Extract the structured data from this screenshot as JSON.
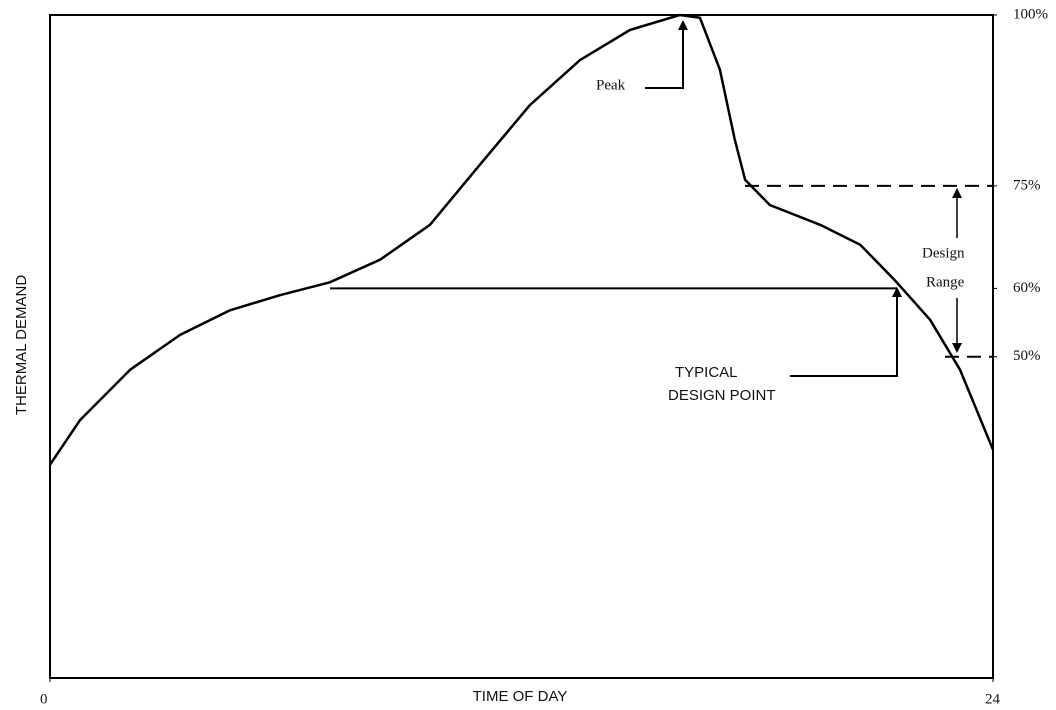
{
  "chart_data": {
    "type": "line",
    "x_label": "TIME OF DAY",
    "y_label": "THERMAL DEMAND",
    "xlim": [
      0,
      24
    ],
    "xticks": [
      0,
      24
    ],
    "ylim": [
      3,
      100
    ],
    "yticks": [
      {
        "value": 100,
        "label": "100%"
      },
      {
        "value": 75,
        "label": "75%"
      },
      {
        "value": 60,
        "label": "60%"
      },
      {
        "value": 50,
        "label": "50%"
      }
    ],
    "color": "#000000",
    "x": [
      0,
      0.76,
      2.04,
      3.31,
      4.58,
      5.85,
      7.12,
      8.4,
      9.67,
      10.94,
      12.21,
      13.49,
      14.76,
      16.03,
      16.54,
      17.05,
      17.43,
      17.69,
      18.32,
      19.6,
      20.62,
      21.5,
      22.4,
      23.16,
      24
    ],
    "values": [
      34.2,
      40.7,
      48.1,
      53.2,
      56.8,
      59.0,
      60.9,
      64.2,
      69.3,
      78.1,
      86.8,
      93.4,
      97.8,
      100,
      99.6,
      92.0,
      81.7,
      75.9,
      72.2,
      69.3,
      66.4,
      61.2,
      55.4,
      48.1,
      36.4
    ],
    "annotations": {
      "peak": "Peak",
      "design_point": [
        "TYPICAL",
        "DESIGN POINT"
      ],
      "design_range": [
        "Design",
        "Range"
      ]
    }
  }
}
